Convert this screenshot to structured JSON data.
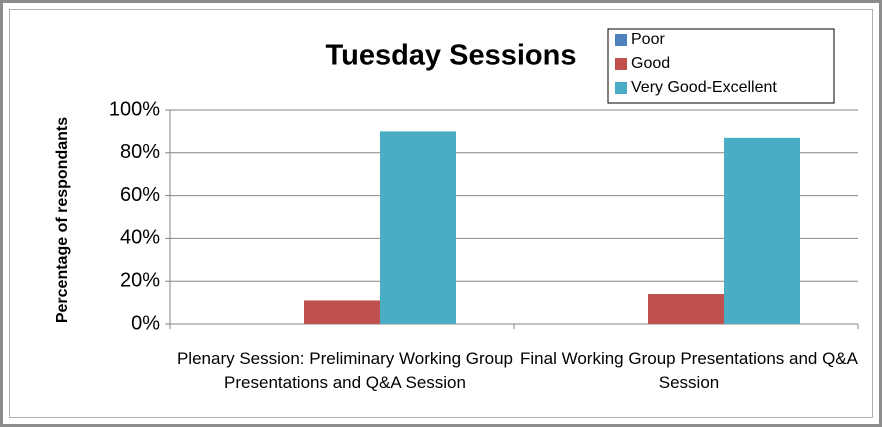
{
  "chart_data": {
    "type": "bar",
    "title": "Tuesday Sessions",
    "y_label": "Percentage of respondants",
    "categories": [
      "Plenary Session: Preliminary Working Group Presentations and Q&A Session",
      "Final Working Group Presentations and Q&A Session"
    ],
    "series": [
      {
        "name": "Poor",
        "color": "#4f81bd",
        "values": [
          0,
          0
        ]
      },
      {
        "name": "Good",
        "color": "#c0504d",
        "values": [
          11,
          14
        ]
      },
      {
        "name": "Very Good-Excellent",
        "color": "#4bacc6",
        "values": [
          90,
          87
        ]
      }
    ],
    "ylim": [
      0,
      100
    ],
    "yticks": [
      {
        "value": 0,
        "label": "0%"
      },
      {
        "value": 20,
        "label": "20%"
      },
      {
        "value": 40,
        "label": "40%"
      },
      {
        "value": 60,
        "label": "60%"
      },
      {
        "value": 80,
        "label": "80%"
      },
      {
        "value": 100,
        "label": "100%"
      }
    ],
    "grid": true,
    "legend": "top-right"
  }
}
